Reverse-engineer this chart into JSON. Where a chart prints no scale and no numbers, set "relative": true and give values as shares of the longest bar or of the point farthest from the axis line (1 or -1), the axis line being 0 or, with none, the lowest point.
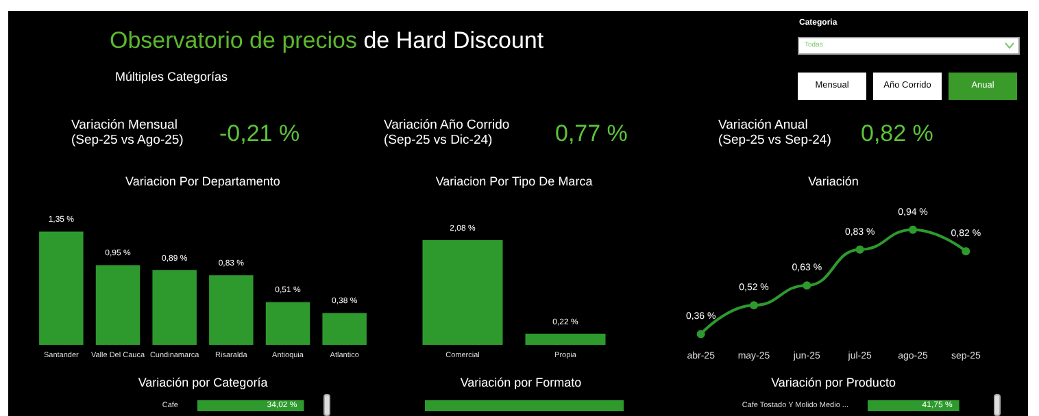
{
  "chart_data": [
    {
      "type": "other",
      "title": "Observatorio de precios de Hard Discount",
      "subtitle": "Múltiples Categorías",
      "annotations": [
        "Categoria",
        "Todas",
        "Mensual",
        "Año Corrido",
        "Anual",
        "Variación Mensual\n(Sep-25 vs Ago-25)",
        "-0,21 %",
        "Variación Año Corrido\n(Sep-25 vs Dic-24)",
        "0,77 %",
        "Variación Anual\n(Sep-25 vs Sep-24)",
        "0,82 %"
      ]
    },
    {
      "type": "bar",
      "title": "Variacion Por Departamento",
      "categories": [
        "Santander",
        "Valle Del Cauca",
        "Cundinamarca",
        "Risaralda",
        "Antioquia",
        "Atlantico"
      ],
      "values": [
        1.35,
        0.95,
        0.89,
        0.83,
        0.51,
        0.38
      ],
      "color": "#2e9a2e",
      "value_labels": [
        "1,35 %",
        "0,95 %",
        "0,89 %",
        "0,83 %",
        "0,51 %",
        "0,38 %"
      ]
    },
    {
      "type": "bar",
      "title": "Variacion Por Tipo De Marca",
      "categories": [
        "Comercial",
        "Propia"
      ],
      "values": [
        2.08,
        0.22
      ],
      "color": "#2e9a2e",
      "value_labels": [
        "2,08 %",
        "0,22 %"
      ]
    },
    {
      "type": "line",
      "title": "Variación",
      "categories": [
        "abr-25",
        "may-25",
        "jun-25",
        "jul-25",
        "ago-25",
        "sep-25"
      ],
      "values": [
        0.36,
        0.52,
        0.63,
        0.83,
        0.94,
        0.82
      ],
      "color": "#2e9a2e",
      "marker": "circle",
      "value_labels": [
        "0,36 %",
        "0,52 %",
        "0,63 %",
        "0,83 %",
        "0,94 %",
        "0,82 %"
      ]
    },
    {
      "type": "bar",
      "orientation": "horizontal",
      "title": "Variación por Categoría",
      "categories": [
        "Cafe"
      ],
      "values": [
        34.02
      ],
      "color": "#2e9a2e",
      "value_labels": [
        "34,02 %"
      ]
    },
    {
      "type": "bar",
      "orientation": "horizontal",
      "relative": true,
      "title": "Variación por Formato",
      "categories": [
        null
      ],
      "values": [
        1
      ],
      "color": "#2e9a2e"
    },
    {
      "type": "bar",
      "orientation": "horizontal",
      "title": "Variación por Producto",
      "categories": [
        "Cafe Tostado Y Molido Medio ..."
      ],
      "values": [
        41.75
      ],
      "color": "#2e9a2e",
      "value_labels": [
        "41,75 %"
      ]
    }
  ]
}
